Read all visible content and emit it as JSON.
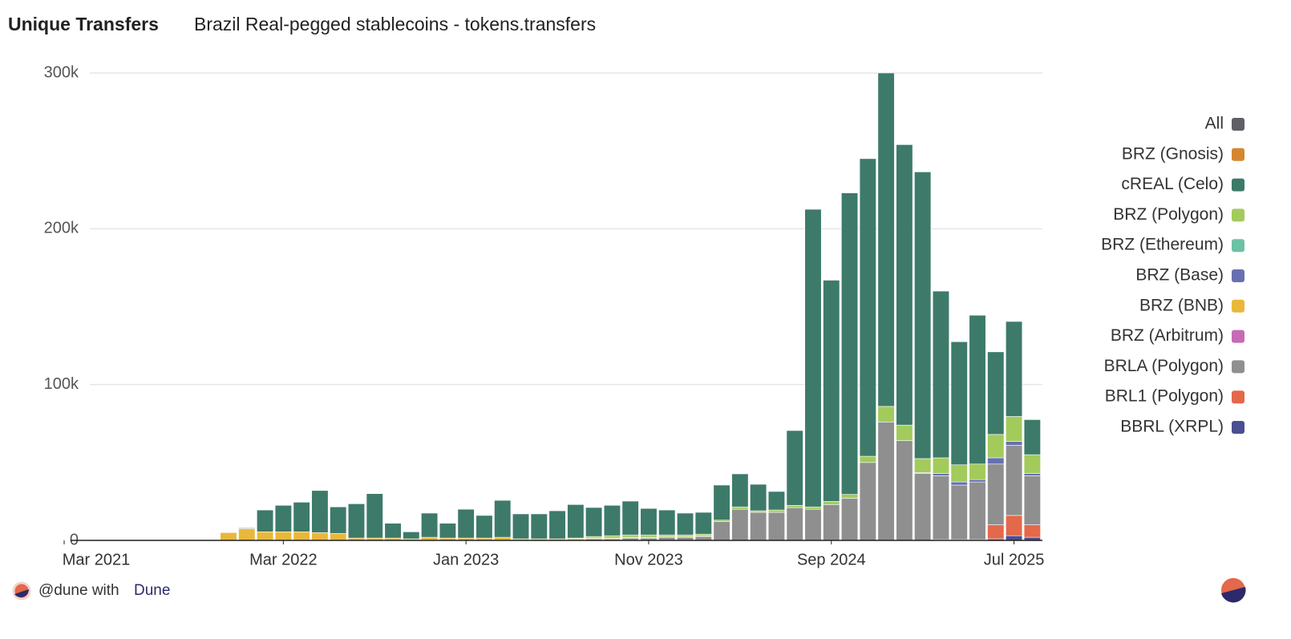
{
  "chart_data": {
    "type": "stacked-bar",
    "title": "Unique Transfers",
    "subtitle": "Brazil Real-pegged stablecoins - tokens.transfers",
    "x": [
      "2021-03",
      "2021-04",
      "2021-05",
      "2021-06",
      "2021-07",
      "2021-08",
      "2021-09",
      "2021-10",
      "2021-11",
      "2021-12",
      "2022-01",
      "2022-02",
      "2022-03",
      "2022-04",
      "2022-05",
      "2022-06",
      "2022-07",
      "2022-08",
      "2022-09",
      "2022-10",
      "2022-11",
      "2022-12",
      "2023-01",
      "2023-02",
      "2023-03",
      "2023-04",
      "2023-05",
      "2023-06",
      "2023-07",
      "2023-08",
      "2023-09",
      "2023-10",
      "2023-11",
      "2023-12",
      "2024-01",
      "2024-02",
      "2024-03",
      "2024-04",
      "2024-05",
      "2024-06",
      "2024-07",
      "2024-08",
      "2024-09",
      "2024-10",
      "2024-11",
      "2024-12",
      "2025-01",
      "2025-02",
      "2025-03",
      "2025-04",
      "2025-05",
      "2025-06",
      "2025-07",
      "2025-08"
    ],
    "xticks": [
      {
        "value": "2021-03",
        "label": "Mar 2021"
      },
      {
        "value": "2022-03",
        "label": "Mar 2022"
      },
      {
        "value": "2023-01",
        "label": "Jan 2023"
      },
      {
        "value": "2023-11",
        "label": "Nov 2023"
      },
      {
        "value": "2024-09",
        "label": "Sep 2024"
      },
      {
        "value": "2025-07",
        "label": "Jul 2025"
      }
    ],
    "ylim": [
      0,
      300000
    ],
    "yticks": [
      0,
      {
        "value": 100000,
        "label": "100k"
      },
      {
        "value": 200000,
        "label": "200k"
      },
      {
        "value": 300000,
        "label": "300k"
      }
    ],
    "grid": true,
    "legend": "right",
    "series": [
      {
        "name": "All",
        "color": "#5f5f66",
        "values": [
          0,
          0,
          0,
          0,
          0,
          0,
          0,
          0,
          0,
          0,
          0,
          0,
          0,
          0,
          0,
          0,
          0,
          0,
          0,
          0,
          0,
          0,
          0,
          0,
          0,
          0,
          0,
          0,
          0,
          0,
          0,
          0,
          0,
          0,
          0,
          0,
          0,
          0,
          0,
          0,
          0,
          0,
          0,
          0,
          0,
          0,
          0,
          0,
          0,
          0,
          0,
          0,
          0,
          0
        ]
      },
      {
        "name": "BRZ (Gnosis)",
        "color": "#d6862e",
        "values": [
          0,
          0,
          0,
          0,
          0,
          0,
          0,
          0,
          0,
          0,
          0,
          0,
          0,
          0,
          0,
          0,
          0,
          0,
          0,
          0,
          0,
          0,
          0,
          0,
          0,
          0,
          0,
          0,
          0,
          0,
          0,
          0,
          0,
          0,
          0,
          0,
          0,
          0,
          0,
          0,
          0,
          0,
          0,
          0,
          0,
          0,
          0,
          0,
          0,
          0,
          0,
          0,
          0,
          0
        ]
      },
      {
        "name": "cREAL (Celo)",
        "color": "#3d7a6a",
        "values": [
          0,
          0,
          0,
          0,
          0,
          0,
          0,
          0,
          0,
          0,
          500,
          14000,
          17000,
          19000,
          27000,
          17000,
          22000,
          28500,
          9500,
          4500,
          15500,
          9500,
          18500,
          14500,
          23700,
          16000,
          16000,
          18000,
          21500,
          18600,
          19500,
          21700,
          17000,
          16000,
          14000,
          14000,
          22500,
          21200,
          17000,
          11900,
          48000,
          191000,
          142000,
          193500,
          191000,
          214000,
          180000,
          184000,
          107000,
          79000,
          95500,
          53000,
          61000,
          22500
        ]
      },
      {
        "name": "BRZ (Polygon)",
        "color": "#a2cb5b",
        "values": [
          0,
          0,
          0,
          0,
          0,
          0,
          0,
          0,
          0,
          0,
          0,
          0,
          0,
          0,
          0,
          0,
          0,
          0,
          0,
          0,
          0,
          0,
          0,
          0,
          0,
          0,
          0,
          0,
          500,
          1000,
          1500,
          1500,
          1500,
          1000,
          1000,
          1000,
          1000,
          1500,
          1000,
          1500,
          1500,
          1500,
          2000,
          2500,
          4000,
          10000,
          10000,
          9000,
          10000,
          11000,
          10000,
          15000,
          16000,
          12000
        ]
      },
      {
        "name": "BRZ (Ethereum)",
        "color": "#6cc2a6",
        "values": [
          0,
          0,
          0,
          0,
          0,
          0,
          0,
          0,
          0,
          0,
          0,
          0,
          0,
          0,
          0,
          0,
          0,
          0,
          0,
          0,
          0,
          0,
          0,
          0,
          0,
          0,
          0,
          0,
          0,
          0,
          0,
          0,
          0,
          0,
          0,
          0,
          0,
          0,
          0,
          0,
          0,
          0,
          0,
          0,
          0,
          0,
          0,
          0,
          0,
          0,
          0,
          0,
          0,
          0
        ]
      },
      {
        "name": "BRZ (Base)",
        "color": "#6670b1",
        "values": [
          0,
          0,
          0,
          0,
          0,
          0,
          0,
          0,
          0,
          0,
          0,
          0,
          0,
          0,
          0,
          0,
          0,
          0,
          0,
          0,
          0,
          0,
          0,
          0,
          0,
          0,
          0,
          0,
          0,
          0,
          0,
          0,
          0,
          0,
          0,
          0,
          0,
          0,
          0,
          0,
          0,
          0,
          0,
          0,
          0,
          0,
          0,
          500,
          1500,
          2000,
          1500,
          4000,
          2500,
          1500
        ]
      },
      {
        "name": "BRZ (BNB)",
        "color": "#e9b83b",
        "values": [
          0,
          0,
          0,
          0,
          0,
          0,
          0,
          0,
          0,
          5000,
          7500,
          5500,
          5500,
          5500,
          5000,
          4500,
          1500,
          1500,
          1500,
          1000,
          2000,
          1500,
          1500,
          1500,
          2000,
          1000,
          1000,
          1000,
          1000,
          500,
          500,
          500,
          500,
          500,
          500,
          500,
          0,
          0,
          0,
          0,
          0,
          0,
          0,
          0,
          0,
          0,
          0,
          0,
          0,
          0,
          0,
          0,
          0,
          0
        ]
      },
      {
        "name": "BRZ (Arbitrum)",
        "color": "#c66bb5",
        "values": [
          0,
          0,
          0,
          0,
          0,
          0,
          0,
          0,
          0,
          0,
          0,
          0,
          0,
          0,
          0,
          0,
          0,
          0,
          0,
          0,
          0,
          0,
          0,
          0,
          0,
          0,
          0,
          0,
          0,
          0,
          0,
          0,
          0,
          0,
          0,
          0,
          0,
          0,
          0,
          0,
          0,
          0,
          0,
          0,
          0,
          0,
          0,
          0,
          0,
          0,
          0,
          0,
          0,
          0
        ]
      },
      {
        "name": "BRLA (Polygon)",
        "color": "#8f8f8f",
        "values": [
          0,
          0,
          0,
          0,
          0,
          0,
          0,
          0,
          0,
          0,
          0,
          0,
          0,
          0,
          0,
          0,
          0,
          0,
          0,
          0,
          0,
          0,
          0,
          0,
          0,
          0,
          0,
          0,
          0,
          1000,
          1000,
          1500,
          1500,
          2000,
          2000,
          2500,
          12000,
          20000,
          18000,
          18000,
          21000,
          20000,
          23000,
          27000,
          50000,
          76000,
          64000,
          43000,
          41000,
          35000,
          37000,
          39000,
          45000,
          31500
        ]
      },
      {
        "name": "BRL1 (Polygon)",
        "color": "#e4684a",
        "values": [
          0,
          0,
          0,
          0,
          0,
          0,
          0,
          0,
          0,
          0,
          0,
          0,
          0,
          0,
          0,
          0,
          0,
          0,
          0,
          0,
          0,
          0,
          0,
          0,
          0,
          0,
          0,
          0,
          0,
          0,
          0,
          0,
          0,
          0,
          0,
          0,
          0,
          0,
          0,
          0,
          0,
          0,
          0,
          0,
          0,
          0,
          0,
          0,
          500,
          500,
          500,
          9000,
          13000,
          8000
        ]
      },
      {
        "name": "BBRL (XRPL)",
        "color": "#4a4f91",
        "values": [
          0,
          0,
          0,
          0,
          0,
          0,
          0,
          0,
          0,
          0,
          0,
          0,
          0,
          0,
          0,
          0,
          0,
          0,
          0,
          0,
          0,
          0,
          0,
          0,
          0,
          0,
          0,
          0,
          0,
          0,
          0,
          0,
          0,
          0,
          0,
          0,
          0,
          0,
          0,
          0,
          0,
          0,
          0,
          0,
          0,
          0,
          0,
          0,
          0,
          0,
          0,
          1000,
          3000,
          2000
        ]
      }
    ]
  },
  "footer": {
    "prefix": "@dune with",
    "brand": "Dune"
  }
}
